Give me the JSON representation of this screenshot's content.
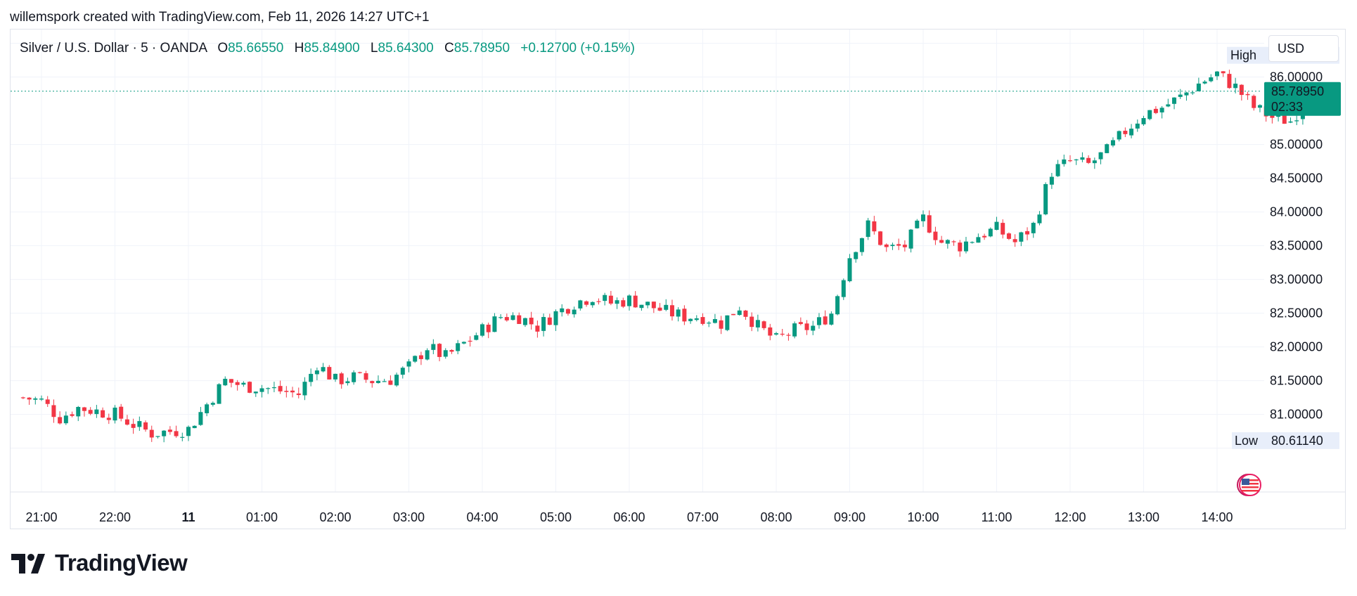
{
  "header": {
    "attribution": "willemspork created with TradingView.com, Feb 11, 2026 14:27 UTC+1"
  },
  "legend": {
    "symbol": "Silver / U.S. Dollar · 5 · OANDA",
    "open_key": "O",
    "open": "85.66550",
    "high_key": "H",
    "high": "85.84900",
    "low_key": "L",
    "low": "85.64300",
    "close_key": "C",
    "close": "85.78950",
    "change": "+0.12700 (+0.15%)"
  },
  "currency_button": "USD",
  "branding": {
    "logo_text": "TradingView"
  },
  "chart_data": {
    "type": "candlestick",
    "title": "Silver / U.S. Dollar · 5 · OANDA",
    "y_axis": {
      "ticks": [
        "86.00000",
        "85.00000",
        "84.50000",
        "84.00000",
        "83.50000",
        "83.00000",
        "82.50000",
        "82.00000",
        "81.50000",
        "81.00000"
      ],
      "ylim": [
        80.5,
        86.5
      ]
    },
    "x_axis": {
      "ticks": [
        "21:00",
        "22:00",
        "11",
        "01:00",
        "02:00",
        "03:00",
        "04:00",
        "05:00",
        "06:00",
        "07:00",
        "08:00",
        "09:00",
        "10:00",
        "11:00",
        "12:00",
        "13:00",
        "14:00"
      ]
    },
    "markers": {
      "high": {
        "label": "High",
        "value": "86.32180"
      },
      "low": {
        "label": "Low",
        "value": "80.61140"
      },
      "last": {
        "value": "85.78950",
        "countdown": "02:33"
      }
    },
    "colors": {
      "up": "#089981",
      "down": "#f23645",
      "grid": "#f0f3fa",
      "last_line": "#089981"
    },
    "close_path": [
      [
        20.75,
        81.25
      ],
      [
        21.0,
        81.2
      ],
      [
        21.25,
        80.95
      ],
      [
        21.5,
        81.1
      ],
      [
        21.75,
        81.05
      ],
      [
        22.0,
        81.0
      ],
      [
        22.25,
        80.85
      ],
      [
        22.5,
        80.72
      ],
      [
        22.75,
        80.75
      ],
      [
        23.0,
        80.78
      ],
      [
        23.25,
        81.15
      ],
      [
        23.5,
        81.5
      ],
      [
        23.75,
        81.42
      ],
      [
        24.0,
        81.4
      ],
      [
        24.25,
        81.35
      ],
      [
        24.5,
        81.3
      ],
      [
        24.75,
        81.75
      ],
      [
        25.0,
        81.5
      ],
      [
        25.25,
        81.55
      ],
      [
        25.5,
        81.5
      ],
      [
        25.75,
        81.52
      ],
      [
        26.0,
        81.7
      ],
      [
        26.25,
        82.0
      ],
      [
        26.5,
        81.85
      ],
      [
        26.75,
        82.05
      ],
      [
        27.0,
        82.25
      ],
      [
        27.25,
        82.45
      ],
      [
        27.5,
        82.45
      ],
      [
        27.75,
        82.3
      ],
      [
        28.0,
        82.5
      ],
      [
        28.25,
        82.65
      ],
      [
        28.5,
        82.75
      ],
      [
        28.75,
        82.65
      ],
      [
        29.0,
        82.7
      ],
      [
        29.25,
        82.62
      ],
      [
        29.5,
        82.52
      ],
      [
        29.75,
        82.45
      ],
      [
        30.0,
        82.45
      ],
      [
        30.25,
        82.35
      ],
      [
        30.5,
        82.6
      ],
      [
        30.75,
        82.3
      ],
      [
        31.0,
        82.1
      ],
      [
        31.25,
        82.25
      ],
      [
        31.5,
        82.3
      ],
      [
        31.75,
        82.5
      ],
      [
        32.0,
        83.35
      ],
      [
        32.25,
        83.8
      ],
      [
        32.5,
        83.45
      ],
      [
        32.75,
        83.5
      ],
      [
        33.0,
        83.9
      ],
      [
        33.25,
        83.55
      ],
      [
        33.5,
        83.5
      ],
      [
        33.75,
        83.65
      ],
      [
        34.0,
        83.75
      ],
      [
        34.25,
        83.55
      ],
      [
        34.5,
        83.8
      ],
      [
        34.75,
        84.6
      ],
      [
        35.0,
        84.75
      ],
      [
        35.25,
        84.7
      ],
      [
        35.5,
        84.9
      ],
      [
        35.75,
        85.2
      ],
      [
        36.0,
        85.45
      ],
      [
        36.25,
        85.55
      ],
      [
        36.5,
        85.7
      ],
      [
        36.75,
        85.9
      ],
      [
        37.0,
        86.05
      ],
      [
        37.25,
        85.85
      ],
      [
        37.5,
        85.55
      ],
      [
        37.75,
        85.4
      ],
      [
        38.0,
        85.35
      ],
      [
        38.25,
        85.7
      ],
      [
        38.5,
        85.78
      ]
    ]
  }
}
